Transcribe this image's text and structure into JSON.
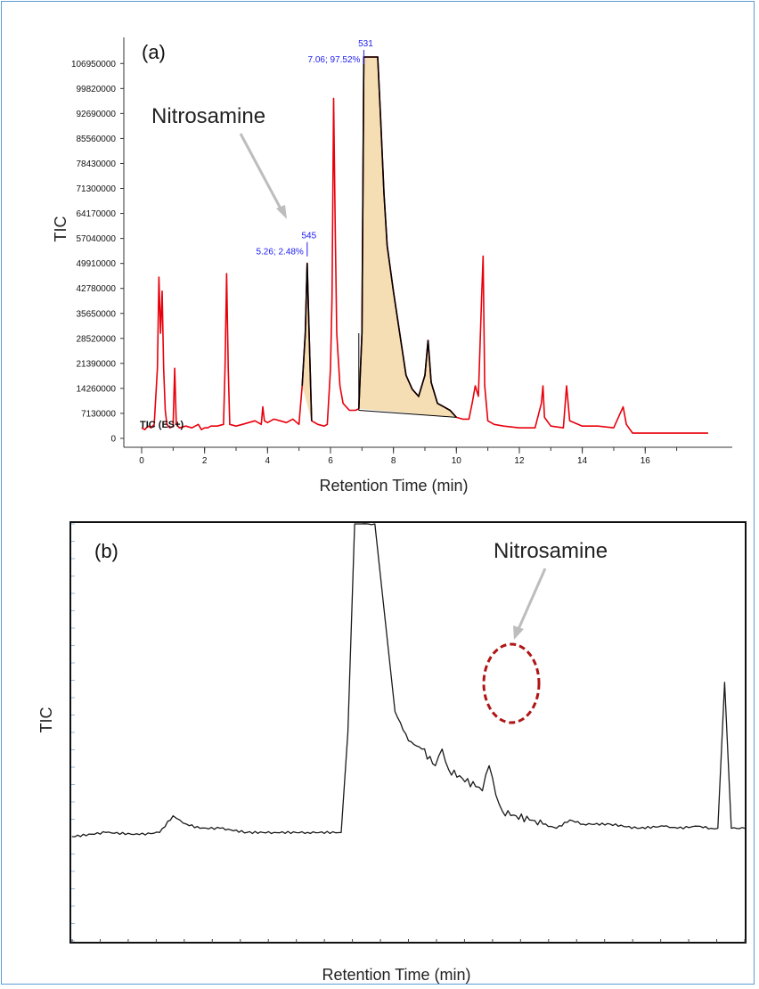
{
  "chart_data": [
    {
      "type": "line",
      "panel_label": "(a)",
      "xlabel": "Retention Time (min)",
      "ylabel": "TIC",
      "x_ticks": [
        0,
        2,
        4,
        6,
        8,
        10,
        12,
        14,
        16
      ],
      "y_ticks": [
        "0",
        "7130000",
        "14260000",
        "21390000",
        "28520000",
        "35650000",
        "42780000",
        "49910000",
        "57040000",
        "64170000",
        "71300000",
        "78430000",
        "85560000",
        "92690000",
        "99820000",
        "106950000"
      ],
      "xlim": [
        0,
        18.2
      ],
      "ylim": [
        0,
        108800000
      ],
      "trace_label": "TIC (ES+)",
      "annotation": "Nitrosamine",
      "peak_labels": [
        {
          "x": 5.26,
          "top": "545",
          "side": "5.26; 2.48%"
        },
        {
          "x": 7.06,
          "top": "531",
          "side": "7.06; 97.52%"
        }
      ],
      "colors": {
        "trace": "#e8000b",
        "integrated": "#000000",
        "fill": "#f5deb3",
        "labels": "#1d1df0"
      },
      "series": [
        {
          "name": "TIC (ES+)",
          "x": [
            0.0,
            0.1,
            0.2,
            0.3,
            0.4,
            0.5,
            0.55,
            0.6,
            0.65,
            0.7,
            0.75,
            0.8,
            0.9,
            1.0,
            1.05,
            1.1,
            1.2,
            1.4,
            1.6,
            1.8,
            1.9,
            2.0,
            2.1,
            2.2,
            2.4,
            2.6,
            2.65,
            2.7,
            2.75,
            2.8,
            3.0,
            3.2,
            3.4,
            3.6,
            3.8,
            3.85,
            3.9,
            4.0,
            4.2,
            4.4,
            4.6,
            4.8,
            5.0,
            5.1,
            5.2,
            5.26,
            5.32,
            5.4,
            5.6,
            5.8,
            5.9,
            6.0,
            6.05,
            6.1,
            6.15,
            6.2,
            6.3,
            6.4,
            6.6,
            6.8,
            6.9,
            7.0,
            7.06,
            7.2,
            7.4,
            7.5,
            7.6,
            7.7,
            7.8,
            8.0,
            8.2,
            8.4,
            8.6,
            8.8,
            9.0,
            9.1,
            9.2,
            9.4,
            9.6,
            9.8,
            10.0,
            10.2,
            10.4,
            10.5,
            10.6,
            10.7,
            10.8,
            10.85,
            10.9,
            11.0,
            11.2,
            11.5,
            12.0,
            12.5,
            12.7,
            12.75,
            12.8,
            13.0,
            13.4,
            13.5,
            13.6,
            14.0,
            14.5,
            15.0,
            15.3,
            15.4,
            15.6,
            16.0,
            16.5,
            17.0,
            17.5,
            18.0
          ],
          "y": [
            3000000,
            2500000,
            3500000,
            3000000,
            4000000,
            20000000,
            46000000,
            30000000,
            42000000,
            20000000,
            8000000,
            4000000,
            3000000,
            3500000,
            20000000,
            4000000,
            3000000,
            3500000,
            3000000,
            4000000,
            2500000,
            3000000,
            3000000,
            3500000,
            3500000,
            4000000,
            20000000,
            47000000,
            20000000,
            4000000,
            3500000,
            4000000,
            4500000,
            5000000,
            4000000,
            9000000,
            5000000,
            4500000,
            5500000,
            5000000,
            4500000,
            5500000,
            4000000,
            15000000,
            30000000,
            50000000,
            30000000,
            5000000,
            4000000,
            3500000,
            4000000,
            20000000,
            40000000,
            97000000,
            60000000,
            30000000,
            15000000,
            10000000,
            8000000,
            8000000,
            8500000,
            30000000,
            108800000,
            108800000,
            108800000,
            108800000,
            90000000,
            70000000,
            55000000,
            42000000,
            30000000,
            18000000,
            14000000,
            12000000,
            18000000,
            28000000,
            16000000,
            10000000,
            9000000,
            8000000,
            6000000,
            5500000,
            5500000,
            10000000,
            15000000,
            12000000,
            40000000,
            52000000,
            15000000,
            5000000,
            4000000,
            3500000,
            3000000,
            3000000,
            10000000,
            15000000,
            6000000,
            3500000,
            3000000,
            15000000,
            5000000,
            3500000,
            3500000,
            3000000,
            9000000,
            4000000,
            1500000,
            1500000,
            1500000,
            1500000,
            1500000,
            1500000
          ]
        }
      ]
    },
    {
      "type": "line",
      "panel_label": "(b)",
      "xlabel": "Retention Time (min)",
      "ylabel": "TIC",
      "annotation": "Nitrosamine",
      "colors": {
        "trace": "#1a1a1a",
        "circle": "#b01515",
        "arrow": "#bbbbbb"
      },
      "series": [
        {
          "name": "TIC",
          "x": [
            0.0,
            0.05,
            0.1,
            0.13,
            0.15,
            0.16,
            0.17,
            0.19,
            0.22,
            0.26,
            0.3,
            0.35,
            0.4,
            0.41,
            0.42,
            0.425,
            0.43,
            0.44,
            0.45,
            0.48,
            0.5,
            0.52,
            0.54,
            0.55,
            0.56,
            0.58,
            0.6,
            0.61,
            0.62,
            0.63,
            0.64,
            0.66,
            0.68,
            0.7,
            0.72,
            0.74,
            0.76,
            0.8,
            0.84,
            0.88,
            0.9,
            0.93,
            0.95,
            0.96,
            0.97,
            0.98,
            1.0
          ],
          "y": [
            0.25,
            0.26,
            0.255,
            0.26,
            0.3,
            0.29,
            0.28,
            0.27,
            0.27,
            0.26,
            0.26,
            0.26,
            0.26,
            0.5,
            1.0,
            1.0,
            1.0,
            1.0,
            1.0,
            0.55,
            0.48,
            0.46,
            0.42,
            0.46,
            0.41,
            0.39,
            0.37,
            0.36,
            0.42,
            0.35,
            0.31,
            0.3,
            0.29,
            0.28,
            0.27,
            0.29,
            0.28,
            0.28,
            0.27,
            0.275,
            0.27,
            0.275,
            0.27,
            0.27,
            0.62,
            0.27,
            0.27
          ]
        }
      ]
    }
  ]
}
